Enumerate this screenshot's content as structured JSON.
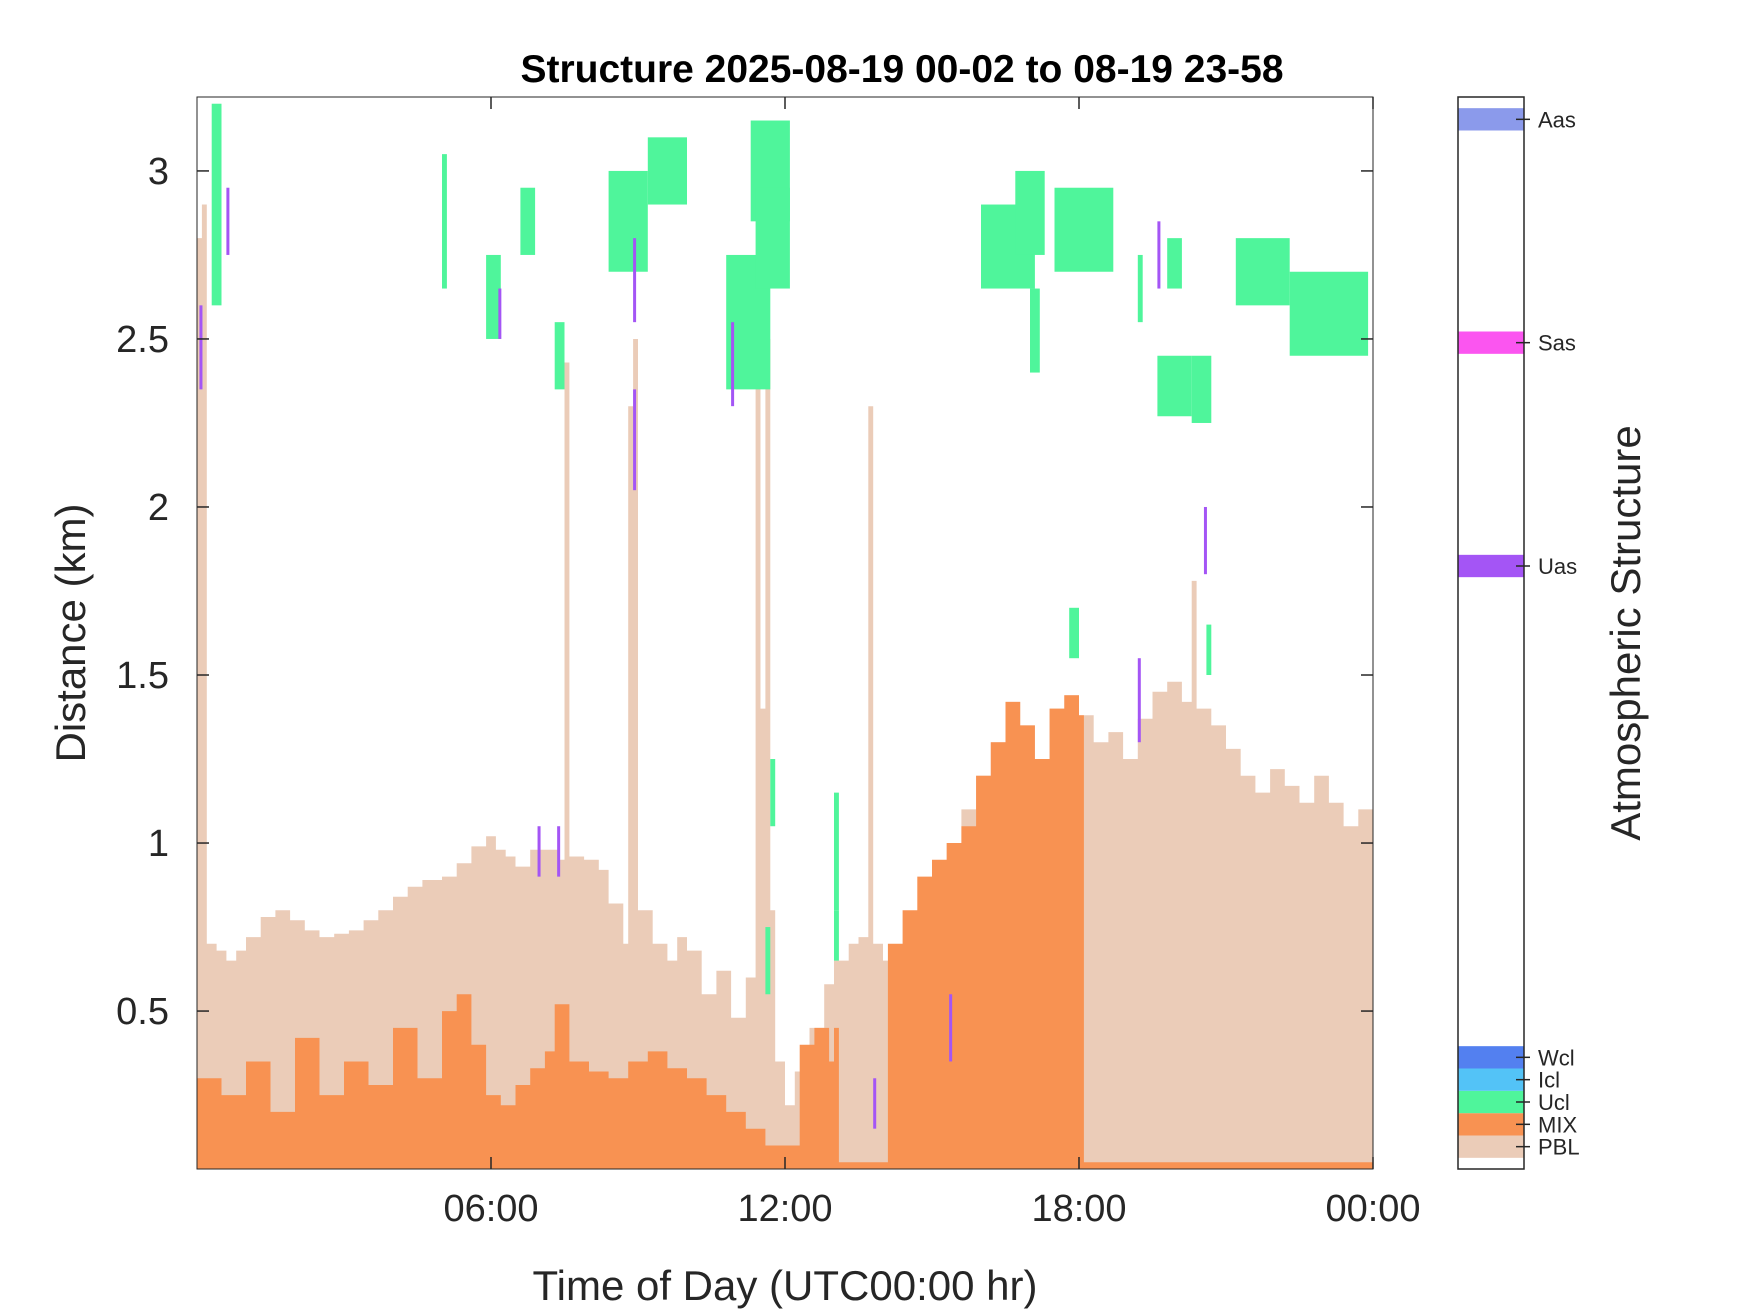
{
  "chart_data": {
    "type": "heatmap",
    "title": "Structure 2025-08-19 00-02 to 08-19 23-58",
    "xlabel": "Time of Day (UTC00:00 hr)",
    "ylabel": "Distance (km)",
    "xlim": [
      0,
      24
    ],
    "ylim": [
      0.03,
      3.22
    ],
    "x_ticks": [
      {
        "value": 6,
        "label": "06:00"
      },
      {
        "value": 12,
        "label": "12:00"
      },
      {
        "value": 18,
        "label": "18:00"
      },
      {
        "value": 24,
        "label": "00:00"
      }
    ],
    "y_ticks": [
      {
        "value": 0.5,
        "label": "0.5"
      },
      {
        "value": 1,
        "label": "1"
      },
      {
        "value": 1.5,
        "label": "1.5"
      },
      {
        "value": 2,
        "label": "2"
      },
      {
        "value": 2.5,
        "label": "2.5"
      },
      {
        "value": 3,
        "label": "3"
      }
    ],
    "grid": false,
    "colorbar": {
      "label": "Atmospheric Structure",
      "classes": [
        {
          "name": "PBL",
          "color": "#EBCCB8",
          "level": 1
        },
        {
          "name": "MIX",
          "color": "#F89252",
          "level": 2
        },
        {
          "name": "Ucl",
          "color": "#4FF59B",
          "level": 3
        },
        {
          "name": "Icl",
          "color": "#53C3F7",
          "level": 4
        },
        {
          "name": "Wcl",
          "color": "#5380F0",
          "level": 5
        },
        {
          "name": "Uas",
          "color": "#A455F5",
          "level": 27
        },
        {
          "name": "Sas",
          "color": "#FB55F0",
          "level": 37
        },
        {
          "name": "Aas",
          "color": "#8B9AEB",
          "level": 47
        }
      ],
      "level_range": [
        0,
        48
      ]
    },
    "pbl_top_km": [
      [
        0.0,
        2.8
      ],
      [
        0.1,
        2.9
      ],
      [
        0.2,
        0.7
      ],
      [
        0.4,
        0.68
      ],
      [
        0.6,
        0.65
      ],
      [
        0.8,
        0.68
      ],
      [
        1.0,
        0.72
      ],
      [
        1.3,
        0.78
      ],
      [
        1.6,
        0.8
      ],
      [
        1.9,
        0.77
      ],
      [
        2.2,
        0.74
      ],
      [
        2.5,
        0.72
      ],
      [
        2.8,
        0.73
      ],
      [
        3.1,
        0.74
      ],
      [
        3.4,
        0.77
      ],
      [
        3.7,
        0.8
      ],
      [
        4.0,
        0.84
      ],
      [
        4.3,
        0.87
      ],
      [
        4.6,
        0.89
      ],
      [
        5.0,
        0.9
      ],
      [
        5.3,
        0.94
      ],
      [
        5.6,
        0.99
      ],
      [
        5.9,
        1.02
      ],
      [
        6.1,
        0.98
      ],
      [
        6.3,
        0.96
      ],
      [
        6.5,
        0.93
      ],
      [
        6.8,
        0.98
      ],
      [
        7.2,
        0.98
      ],
      [
        7.4,
        0.95
      ],
      [
        7.5,
        2.43
      ],
      [
        7.6,
        0.96
      ],
      [
        7.9,
        0.95
      ],
      [
        8.2,
        0.92
      ],
      [
        8.4,
        0.82
      ],
      [
        8.7,
        0.7
      ],
      [
        8.8,
        2.3
      ],
      [
        8.9,
        2.5
      ],
      [
        9.0,
        0.8
      ],
      [
        9.3,
        0.7
      ],
      [
        9.6,
        0.65
      ],
      [
        9.8,
        0.72
      ],
      [
        10.0,
        0.68
      ],
      [
        10.3,
        0.55
      ],
      [
        10.6,
        0.62
      ],
      [
        10.9,
        0.48
      ],
      [
        11.2,
        0.6
      ],
      [
        11.4,
        2.6
      ],
      [
        11.5,
        1.4
      ],
      [
        11.6,
        2.5
      ],
      [
        11.7,
        0.8
      ],
      [
        11.8,
        0.35
      ],
      [
        12.0,
        0.22
      ],
      [
        12.2,
        0.32
      ],
      [
        12.5,
        0.45
      ],
      [
        12.8,
        0.58
      ],
      [
        13.0,
        0.65
      ],
      [
        13.3,
        0.7
      ],
      [
        13.5,
        0.72
      ],
      [
        13.7,
        2.3
      ],
      [
        13.8,
        0.7
      ],
      [
        14.0,
        0.65
      ],
      [
        14.3,
        0.6
      ],
      [
        14.5,
        0.68
      ],
      [
        14.7,
        0.8
      ],
      [
        15.0,
        0.9
      ],
      [
        15.3,
        1.0
      ],
      [
        15.6,
        1.1
      ],
      [
        15.9,
        1.2
      ],
      [
        16.2,
        1.3
      ],
      [
        16.5,
        1.42
      ],
      [
        16.8,
        1.35
      ],
      [
        17.1,
        1.25
      ],
      [
        17.4,
        1.4
      ],
      [
        17.7,
        1.44
      ],
      [
        18.0,
        1.38
      ],
      [
        18.3,
        1.3
      ],
      [
        18.6,
        1.33
      ],
      [
        18.9,
        1.25
      ],
      [
        19.2,
        1.37
      ],
      [
        19.5,
        1.45
      ],
      [
        19.8,
        1.48
      ],
      [
        20.1,
        1.42
      ],
      [
        20.3,
        1.78
      ],
      [
        20.4,
        1.4
      ],
      [
        20.7,
        1.35
      ],
      [
        21.0,
        1.28
      ],
      [
        21.3,
        1.2
      ],
      [
        21.6,
        1.15
      ],
      [
        21.9,
        1.22
      ],
      [
        22.2,
        1.17
      ],
      [
        22.5,
        1.12
      ],
      [
        22.8,
        1.2
      ],
      [
        23.1,
        1.12
      ],
      [
        23.4,
        1.05
      ],
      [
        23.7,
        1.1
      ],
      [
        24.0,
        1.07
      ]
    ],
    "mix_top_km": [
      [
        0.0,
        0.3
      ],
      [
        0.5,
        0.25
      ],
      [
        1.0,
        0.35
      ],
      [
        1.5,
        0.2
      ],
      [
        2.0,
        0.42
      ],
      [
        2.5,
        0.25
      ],
      [
        3.0,
        0.35
      ],
      [
        3.5,
        0.28
      ],
      [
        4.0,
        0.45
      ],
      [
        4.5,
        0.3
      ],
      [
        5.0,
        0.5
      ],
      [
        5.3,
        0.55
      ],
      [
        5.6,
        0.4
      ],
      [
        5.9,
        0.25
      ],
      [
        6.2,
        0.22
      ],
      [
        6.5,
        0.28
      ],
      [
        6.8,
        0.33
      ],
      [
        7.1,
        0.38
      ],
      [
        7.3,
        0.52
      ],
      [
        7.6,
        0.35
      ],
      [
        8.0,
        0.32
      ],
      [
        8.4,
        0.3
      ],
      [
        8.8,
        0.35
      ],
      [
        9.2,
        0.38
      ],
      [
        9.6,
        0.33
      ],
      [
        10.0,
        0.3
      ],
      [
        10.4,
        0.25
      ],
      [
        10.8,
        0.2
      ],
      [
        11.2,
        0.15
      ],
      [
        11.6,
        0.1
      ],
      [
        12.0,
        0.1
      ],
      [
        12.3,
        0.4
      ],
      [
        12.6,
        0.45
      ],
      [
        12.9,
        0.35
      ],
      [
        13.0,
        0.45
      ],
      [
        13.1,
        0.05
      ],
      [
        14.0,
        0.05
      ],
      [
        14.1,
        0.7
      ],
      [
        14.4,
        0.8
      ],
      [
        14.7,
        0.9
      ],
      [
        15.0,
        0.95
      ],
      [
        15.3,
        1.0
      ],
      [
        15.6,
        1.05
      ],
      [
        15.9,
        1.2
      ],
      [
        16.2,
        1.3
      ],
      [
        16.5,
        1.42
      ],
      [
        16.8,
        1.35
      ],
      [
        17.1,
        1.25
      ],
      [
        17.4,
        1.4
      ],
      [
        17.7,
        1.44
      ],
      [
        18.0,
        1.38
      ],
      [
        18.1,
        0.05
      ],
      [
        24.0,
        0.05
      ]
    ],
    "ucl_segments_km": [
      {
        "t": [
          0.3,
          0.5
        ],
        "y": [
          2.6,
          3.2
        ]
      },
      {
        "t": [
          5.0,
          5.1
        ],
        "y": [
          2.65,
          3.05
        ]
      },
      {
        "t": [
          5.9,
          6.2
        ],
        "y": [
          2.5,
          2.75
        ]
      },
      {
        "t": [
          6.6,
          6.9
        ],
        "y": [
          2.75,
          2.95
        ]
      },
      {
        "t": [
          7.3,
          7.5
        ],
        "y": [
          2.35,
          2.55
        ]
      },
      {
        "t": [
          8.4,
          9.2
        ],
        "y": [
          2.7,
          3.0
        ]
      },
      {
        "t": [
          9.2,
          10.0
        ],
        "y": [
          2.9,
          3.1
        ]
      },
      {
        "t": [
          10.8,
          11.7
        ],
        "y": [
          2.35,
          2.75
        ]
      },
      {
        "t": [
          11.3,
          12.1
        ],
        "y": [
          2.85,
          3.15
        ]
      },
      {
        "t": [
          11.4,
          12.1
        ],
        "y": [
          2.65,
          2.95
        ]
      },
      {
        "t": [
          11.7,
          11.8
        ],
        "y": [
          1.05,
          1.25
        ]
      },
      {
        "t": [
          11.6,
          11.7
        ],
        "y": [
          0.55,
          0.75
        ]
      },
      {
        "t": [
          13.0,
          13.1
        ],
        "y": [
          0.8,
          1.15
        ]
      },
      {
        "t": [
          13.0,
          13.1
        ],
        "y": [
          0.65,
          0.8
        ]
      },
      {
        "t": [
          16.0,
          17.1
        ],
        "y": [
          2.65,
          2.9
        ]
      },
      {
        "t": [
          16.7,
          17.3
        ],
        "y": [
          2.75,
          3.0
        ]
      },
      {
        "t": [
          17.5,
          18.7
        ],
        "y": [
          2.7,
          2.95
        ]
      },
      {
        "t": [
          17.0,
          17.2
        ],
        "y": [
          2.4,
          2.65
        ]
      },
      {
        "t": [
          17.8,
          18.0
        ],
        "y": [
          1.55,
          1.7
        ]
      },
      {
        "t": [
          19.6,
          20.3
        ],
        "y": [
          2.27,
          2.45
        ]
      },
      {
        "t": [
          20.3,
          20.7
        ],
        "y": [
          2.25,
          2.45
        ]
      },
      {
        "t": [
          19.2,
          19.3
        ],
        "y": [
          2.55,
          2.75
        ]
      },
      {
        "t": [
          19.8,
          20.1
        ],
        "y": [
          2.65,
          2.8
        ]
      },
      {
        "t": [
          20.6,
          20.7
        ],
        "y": [
          1.5,
          1.65
        ]
      },
      {
        "t": [
          21.2,
          22.3
        ],
        "y": [
          2.6,
          2.8
        ]
      },
      {
        "t": [
          22.3,
          23.9
        ],
        "y": [
          2.45,
          2.7
        ]
      }
    ],
    "uas_segments_km": [
      {
        "t": [
          0.05,
          0.1
        ],
        "y": [
          2.35,
          2.6
        ]
      },
      {
        "t": [
          0.6,
          0.65
        ],
        "y": [
          2.75,
          2.95
        ]
      },
      {
        "t": [
          6.15,
          6.2
        ],
        "y": [
          2.5,
          2.65
        ]
      },
      {
        "t": [
          6.95,
          7.0
        ],
        "y": [
          0.9,
          1.05
        ]
      },
      {
        "t": [
          7.35,
          7.4
        ],
        "y": [
          0.9,
          1.05
        ]
      },
      {
        "t": [
          8.9,
          8.95
        ],
        "y": [
          2.55,
          2.8
        ]
      },
      {
        "t": [
          8.9,
          8.95
        ],
        "y": [
          2.05,
          2.35
        ]
      },
      {
        "t": [
          10.9,
          10.95
        ],
        "y": [
          2.3,
          2.55
        ]
      },
      {
        "t": [
          13.8,
          13.85
        ],
        "y": [
          0.15,
          0.3
        ]
      },
      {
        "t": [
          15.35,
          15.4
        ],
        "y": [
          0.35,
          0.55
        ]
      },
      {
        "t": [
          19.2,
          19.25
        ],
        "y": [
          1.3,
          1.55
        ]
      },
      {
        "t": [
          19.6,
          19.65
        ],
        "y": [
          2.65,
          2.85
        ]
      },
      {
        "t": [
          20.55,
          20.6
        ],
        "y": [
          1.8,
          2.0
        ]
      }
    ]
  }
}
